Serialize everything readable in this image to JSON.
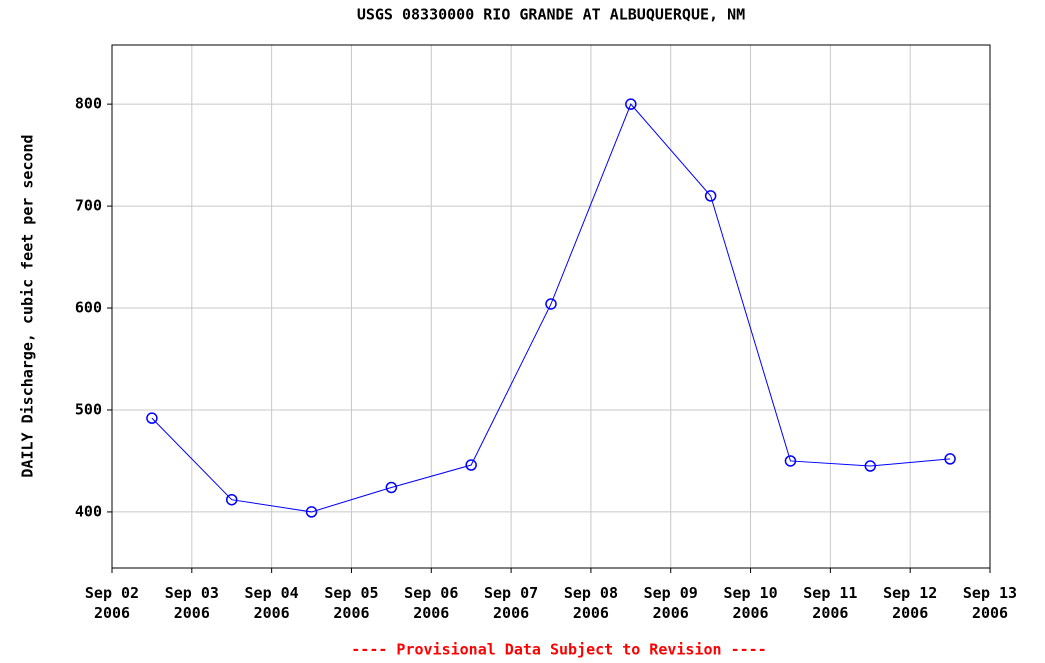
{
  "chart_data": {
    "type": "line",
    "title": "USGS 08330000 RIO GRANDE AT ALBUQUERQUE, NM",
    "y_label": "DAILY Discharge, cubic feet per second",
    "footnote": "---- Provisional Data Subject to Revision ----",
    "x": [
      "2006-09-02",
      "2006-09-03",
      "2006-09-04",
      "2006-09-05",
      "2006-09-06",
      "2006-09-07",
      "2006-09-08",
      "2006-09-09",
      "2006-09-10",
      "2006-09-11",
      "2006-09-12"
    ],
    "series": [
      {
        "name": "DAILY Discharge",
        "color": "#0000ff",
        "values": [
          492,
          412,
          400,
          424,
          446,
          604,
          800,
          710,
          450,
          445,
          452
        ]
      }
    ],
    "xlim": [
      "2006-09-02",
      "2006-09-13"
    ],
    "xticks": [
      {
        "value": "2006-09-02",
        "label": "Sep 02 2006"
      },
      {
        "value": "2006-09-03",
        "label": "Sep 03 2006"
      },
      {
        "value": "2006-09-04",
        "label": "Sep 04 2006"
      },
      {
        "value": "2006-09-05",
        "label": "Sep 05 2006"
      },
      {
        "value": "2006-09-06",
        "label": "Sep 06 2006"
      },
      {
        "value": "2006-09-07",
        "label": "Sep 07 2006"
      },
      {
        "value": "2006-09-08",
        "label": "Sep 08 2006"
      },
      {
        "value": "2006-09-09",
        "label": "Sep 09 2006"
      },
      {
        "value": "2006-09-10",
        "label": "Sep 10 2006"
      },
      {
        "value": "2006-09-11",
        "label": "Sep 11 2006"
      },
      {
        "value": "2006-09-12",
        "label": "Sep 12 2006"
      },
      {
        "value": "2006-09-13",
        "label": "Sep 13 2006"
      }
    ],
    "ylim": [
      345,
      858
    ],
    "yticks": [
      400,
      500,
      600,
      700,
      800
    ],
    "grid": true
  }
}
